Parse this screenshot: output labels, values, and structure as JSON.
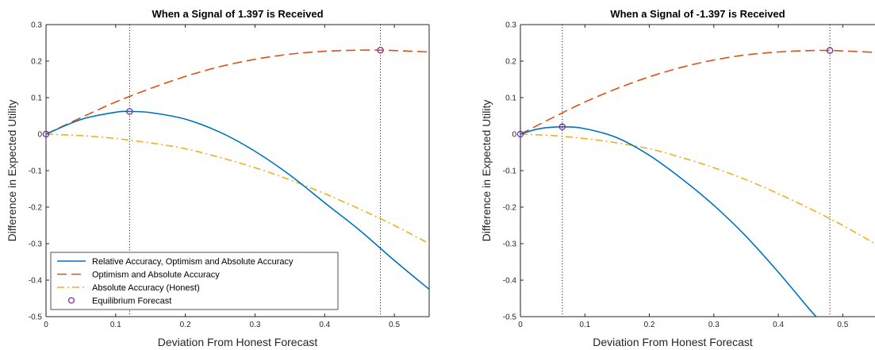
{
  "chart_data": [
    {
      "type": "line",
      "title": "When a Signal of 1.397 is Received",
      "xlabel": "Deviation From Honest Forecast",
      "ylabel": "Difference in Expected Utility",
      "xlim": [
        0,
        0.55
      ],
      "ylim": [
        -0.5,
        0.3
      ],
      "xticks": [
        0,
        0.1,
        0.2,
        0.3,
        0.4,
        0.5
      ],
      "xtick_labels": [
        "0",
        "0.1",
        "0.2",
        "0.3",
        "0.4",
        "0.5"
      ],
      "yticks": [
        -0.5,
        -0.4,
        -0.3,
        -0.2,
        -0.1,
        0,
        0.1,
        0.2,
        0.3
      ],
      "ytick_labels": [
        "-0.5",
        "-0.4",
        "-0.3",
        "-0.2",
        "-0.1",
        "0",
        "0.1",
        "0.2",
        "0.3"
      ],
      "grid": false,
      "legend": {
        "placement": "bottom-left",
        "entries": [
          "Relative Accuracy, Optimism and Absolute Accuracy",
          "Optimism and Absolute Accuracy",
          "Absolute Accuracy (Honest)",
          "Equilibrium Forecast"
        ]
      },
      "series": [
        {
          "name": "Relative Accuracy, Optimism and Absolute Accuracy",
          "color": "#0072BD",
          "style": "solid",
          "x": [
            0,
            0.05,
            0.1,
            0.12,
            0.15,
            0.2,
            0.25,
            0.3,
            0.35,
            0.4,
            0.45,
            0.5,
            0.55
          ],
          "y": [
            0,
            0.04,
            0.06,
            0.062,
            0.059,
            0.041,
            0.005,
            -0.047,
            -0.112,
            -0.188,
            -0.263,
            -0.346,
            -0.425
          ]
        },
        {
          "name": "Optimism and Absolute Accuracy",
          "color": "#D95319",
          "style": "dashed",
          "x": [
            0,
            0.05,
            0.1,
            0.15,
            0.2,
            0.25,
            0.3,
            0.35,
            0.4,
            0.45,
            0.48,
            0.5,
            0.55
          ],
          "y": [
            0,
            0.045,
            0.088,
            0.125,
            0.158,
            0.185,
            0.205,
            0.219,
            0.227,
            0.23,
            0.23,
            0.229,
            0.225
          ]
        },
        {
          "name": "Absolute Accuracy (Honest)",
          "color": "#EDB120",
          "style": "dashdot",
          "x": [
            0,
            0.05,
            0.1,
            0.15,
            0.2,
            0.25,
            0.3,
            0.35,
            0.4,
            0.45,
            0.5,
            0.55
          ],
          "y": [
            0,
            -0.004,
            -0.012,
            -0.024,
            -0.04,
            -0.064,
            -0.092,
            -0.125,
            -0.163,
            -0.205,
            -0.25,
            -0.3
          ]
        }
      ],
      "equilibrium_points": {
        "name": "Equilibrium Forecast",
        "color": "#7E2F8E",
        "x": [
          0,
          0.12,
          0.48
        ],
        "y": [
          0,
          0.062,
          0.23
        ]
      },
      "vertical_reference_lines": [
        0.12,
        0.48
      ]
    },
    {
      "type": "line",
      "title": "When a Signal of -1.397 is Received",
      "xlabel": "Deviation From Honest Forecast",
      "ylabel": "Difference in Expected Utility",
      "xlim": [
        0,
        0.55
      ],
      "ylim": [
        -0.5,
        0.3
      ],
      "xticks": [
        0,
        0.1,
        0.2,
        0.3,
        0.4,
        0.5
      ],
      "xtick_labels": [
        "0",
        "0.1",
        "0.2",
        "0.3",
        "0.4",
        "0.5"
      ],
      "yticks": [
        -0.5,
        -0.4,
        -0.3,
        -0.2,
        -0.1,
        0,
        0.1,
        0.2,
        0.3
      ],
      "ytick_labels": [
        "-0.5",
        "-0.4",
        "-0.3",
        "-0.2",
        "-0.1",
        "0",
        "0.1",
        "0.2",
        "0.3"
      ],
      "grid": false,
      "series": [
        {
          "name": "Relative Accuracy, Optimism and Absolute Accuracy",
          "color": "#0072BD",
          "style": "solid",
          "x": [
            0,
            0.03,
            0.065,
            0.1,
            0.15,
            0.2,
            0.25,
            0.3,
            0.35,
            0.4,
            0.45,
            0.47
          ],
          "y": [
            0,
            0.015,
            0.02,
            0.015,
            -0.01,
            -0.058,
            -0.122,
            -0.195,
            -0.28,
            -0.378,
            -0.483,
            -0.52
          ]
        },
        {
          "name": "Optimism and Absolute Accuracy",
          "color": "#D95319",
          "style": "dashed",
          "x": [
            0,
            0.05,
            0.1,
            0.15,
            0.2,
            0.25,
            0.3,
            0.35,
            0.4,
            0.45,
            0.48,
            0.5,
            0.55
          ],
          "y": [
            0,
            0.045,
            0.088,
            0.125,
            0.157,
            0.183,
            0.203,
            0.217,
            0.225,
            0.229,
            0.229,
            0.228,
            0.224
          ]
        },
        {
          "name": "Absolute Accuracy (Honest)",
          "color": "#EDB120",
          "style": "dashdot",
          "x": [
            0,
            0.05,
            0.1,
            0.15,
            0.2,
            0.25,
            0.3,
            0.35,
            0.4,
            0.45,
            0.5,
            0.55
          ],
          "y": [
            0,
            -0.004,
            -0.012,
            -0.024,
            -0.04,
            -0.064,
            -0.092,
            -0.125,
            -0.163,
            -0.205,
            -0.25,
            -0.3
          ]
        }
      ],
      "equilibrium_points": {
        "name": "Equilibrium Forecast",
        "color": "#7E2F8E",
        "x": [
          0,
          0.065,
          0.48
        ],
        "y": [
          0,
          0.02,
          0.229
        ]
      },
      "vertical_reference_lines": [
        0.065,
        0.48
      ]
    }
  ]
}
